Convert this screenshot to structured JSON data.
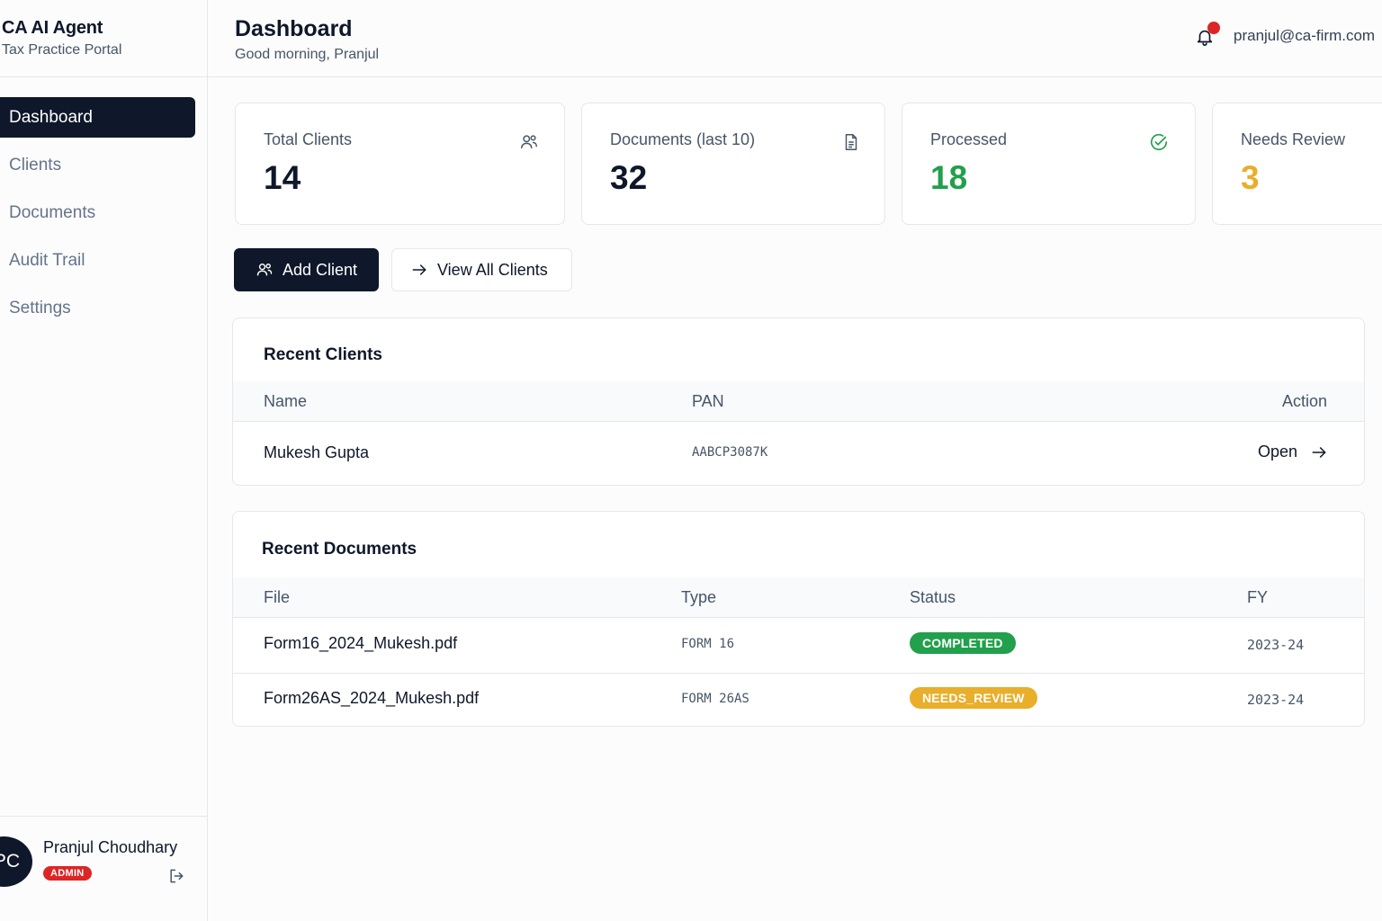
{
  "brand": {
    "title": "CA AI Agent",
    "subtitle": "Tax Practice Portal"
  },
  "nav": {
    "items": [
      {
        "label": "Dashboard",
        "active": true
      },
      {
        "label": "Clients"
      },
      {
        "label": "Documents"
      },
      {
        "label": "Audit Trail"
      },
      {
        "label": "Settings"
      }
    ]
  },
  "user": {
    "initials": "PC",
    "name": "Pranjul Choudhary",
    "role": "ADMIN"
  },
  "header": {
    "title": "Dashboard",
    "greeting": "Good morning, Pranjul",
    "email": "pranjul@ca-firm.com",
    "notification_icon": "bell-icon"
  },
  "stats": [
    {
      "label": "Total Clients",
      "value": "14",
      "icon": "users-icon",
      "color": "#0f172a"
    },
    {
      "label": "Documents (last 10)",
      "value": "32",
      "icon": "document-icon",
      "color": "#0f172a"
    },
    {
      "label": "Processed",
      "value": "18",
      "icon": "check-circle-icon",
      "color": "#22a04b"
    },
    {
      "label": "Needs Review",
      "value": "3",
      "icon": "alert-icon",
      "color": "#e9ae2a"
    }
  ],
  "actions": {
    "add_client": "Add Client",
    "view_all_clients": "View All Clients"
  },
  "recent_clients": {
    "title": "Recent Clients",
    "columns": {
      "name": "Name",
      "pan": "PAN",
      "action": "Action"
    },
    "rows": [
      {
        "name": "Mukesh Gupta",
        "pan": "AABCP3087K",
        "action": "Open"
      }
    ]
  },
  "recent_documents": {
    "title": "Recent Documents",
    "columns": {
      "file": "File",
      "type": "Type",
      "status": "Status",
      "fy": "FY"
    },
    "rows": [
      {
        "file": "Form16_2024_Mukesh.pdf",
        "type": "FORM 16",
        "status": "COMPLETED",
        "status_color": "#22a04b",
        "fy": "2023-24"
      },
      {
        "file": "Form26AS_2024_Mukesh.pdf",
        "type": "FORM 26AS",
        "status": "NEEDS_REVIEW",
        "status_color": "#e9ae2a",
        "fy": "2023-24"
      }
    ]
  }
}
